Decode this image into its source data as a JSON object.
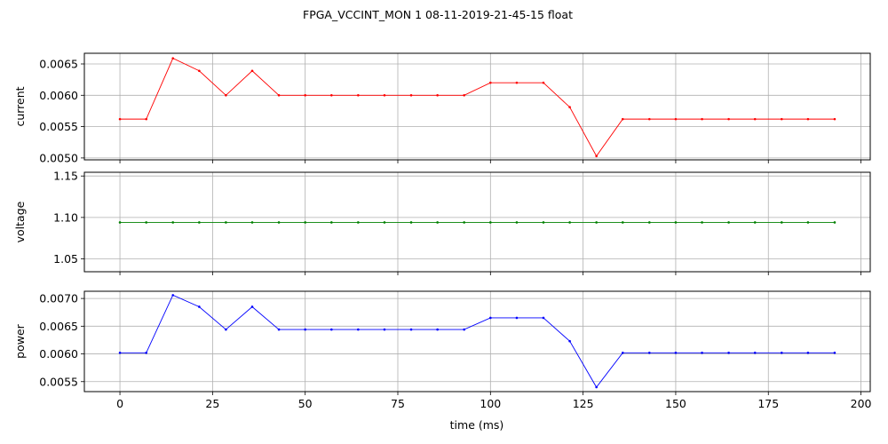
{
  "chart_data": {
    "type": "line",
    "title": "FPGA_VCCINT_MON   1   08-11-2019-21-45-15   float",
    "xlabel": "time (ms)",
    "x": [
      0,
      7.1,
      14.3,
      21.4,
      28.6,
      35.7,
      42.9,
      50.0,
      57.1,
      64.3,
      71.4,
      78.6,
      85.7,
      92.9,
      100.0,
      107.1,
      114.3,
      121.4,
      128.6,
      135.7,
      142.9,
      150.0,
      157.1,
      164.3,
      171.4,
      178.6,
      185.7,
      192.9
    ],
    "xlim": [
      -9.6,
      202.5
    ],
    "xticks": [
      0,
      25,
      50,
      75,
      100,
      125,
      150,
      175,
      200
    ],
    "xtick_labels": [
      "0",
      "25",
      "50",
      "75",
      "100",
      "125",
      "150",
      "175",
      "200"
    ],
    "grid": true,
    "panels": [
      {
        "ylabel": "current",
        "color": "#ff0000",
        "ylim": [
          0.00497,
          0.00667
        ],
        "yticks": [
          0.005,
          0.0055,
          0.006,
          0.0065
        ],
        "ytick_labels": [
          "0.0050",
          "0.0055",
          "0.0060",
          "0.0065"
        ],
        "values": [
          0.00562,
          0.00562,
          0.00659,
          0.00639,
          0.006,
          0.00639,
          0.006,
          0.006,
          0.006,
          0.006,
          0.006,
          0.006,
          0.006,
          0.006,
          0.0062,
          0.0062,
          0.0062,
          0.00581,
          0.00503,
          0.00562,
          0.00562,
          0.00562,
          0.00562,
          0.00562,
          0.00562,
          0.00562,
          0.00562,
          0.00562
        ]
      },
      {
        "ylabel": "voltage",
        "color": "#008000",
        "ylim": [
          1.0345,
          1.1545
        ],
        "yticks": [
          1.05,
          1.1,
          1.15
        ],
        "ytick_labels": [
          "1.05",
          "1.10",
          "1.15"
        ],
        "values": [
          1.094,
          1.094,
          1.094,
          1.094,
          1.094,
          1.094,
          1.094,
          1.094,
          1.094,
          1.094,
          1.094,
          1.094,
          1.094,
          1.094,
          1.094,
          1.094,
          1.094,
          1.094,
          1.094,
          1.094,
          1.094,
          1.094,
          1.094,
          1.094,
          1.094,
          1.094,
          1.094,
          1.094
        ]
      },
      {
        "ylabel": "power",
        "color": "#0000ff",
        "ylim": [
          0.00532,
          0.00713
        ],
        "yticks": [
          0.0055,
          0.006,
          0.0065,
          0.007
        ],
        "ytick_labels": [
          "0.0055",
          "0.0060",
          "0.0065",
          "0.0070"
        ],
        "values": [
          0.00602,
          0.00602,
          0.00706,
          0.00685,
          0.00644,
          0.00685,
          0.00644,
          0.00644,
          0.00644,
          0.00644,
          0.00644,
          0.00644,
          0.00644,
          0.00644,
          0.00665,
          0.00665,
          0.00665,
          0.00623,
          0.0054,
          0.00602,
          0.00602,
          0.00602,
          0.00602,
          0.00602,
          0.00602,
          0.00602,
          0.00602,
          0.00602
        ]
      }
    ]
  }
}
